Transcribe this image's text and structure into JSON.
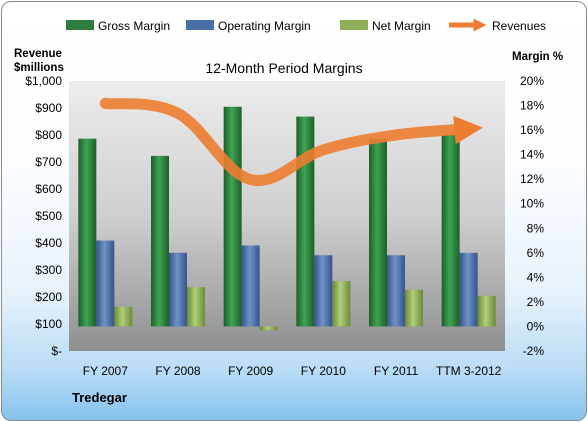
{
  "chart_data": {
    "type": "bar",
    "title": "12-Month Period Margins",
    "company": "Tredegar",
    "left_axis_title": [
      "Revenue",
      "$millions"
    ],
    "right_axis_title": "Margin %",
    "categories": [
      "FY 2007",
      "FY 2008",
      "FY 2009",
      "FY 2010",
      "FY 2011",
      "TTM 3-2012"
    ],
    "left_ylim": [
      0,
      1000
    ],
    "left_ticks": [
      "$-",
      "$100",
      "$200",
      "$300",
      "$400",
      "$500",
      "$600",
      "$700",
      "$800",
      "$900",
      "$1,000"
    ],
    "right_ylim": [
      -2,
      20
    ],
    "right_ticks": [
      "-2%",
      "0%",
      "2%",
      "4%",
      "6%",
      "8%",
      "10%",
      "12%",
      "14%",
      "16%",
      "18%",
      "20%"
    ],
    "legend": [
      "Gross Margin",
      "Operating Margin",
      "Net Margin",
      "Revenues"
    ],
    "legend_position": "top",
    "series": [
      {
        "name": "Gross Margin",
        "axis": "right",
        "type": "bar",
        "values": [
          15.3,
          13.9,
          17.9,
          17.1,
          15.3,
          15.6
        ],
        "color": "#2e7d3c"
      },
      {
        "name": "Operating Margin",
        "axis": "right",
        "type": "bar",
        "values": [
          7.0,
          6.0,
          6.6,
          5.8,
          5.8,
          6.0
        ],
        "color": "#4a6fa5"
      },
      {
        "name": "Net Margin",
        "axis": "right",
        "type": "bar",
        "values": [
          1.6,
          3.2,
          -0.3,
          3.7,
          3.0,
          2.5
        ],
        "color": "#8fae58"
      },
      {
        "name": "Revenues",
        "axis": "left",
        "type": "line",
        "values": [
          917,
          880,
          635,
          745,
          800,
          823
        ],
        "color": "#ed7d31"
      }
    ]
  }
}
